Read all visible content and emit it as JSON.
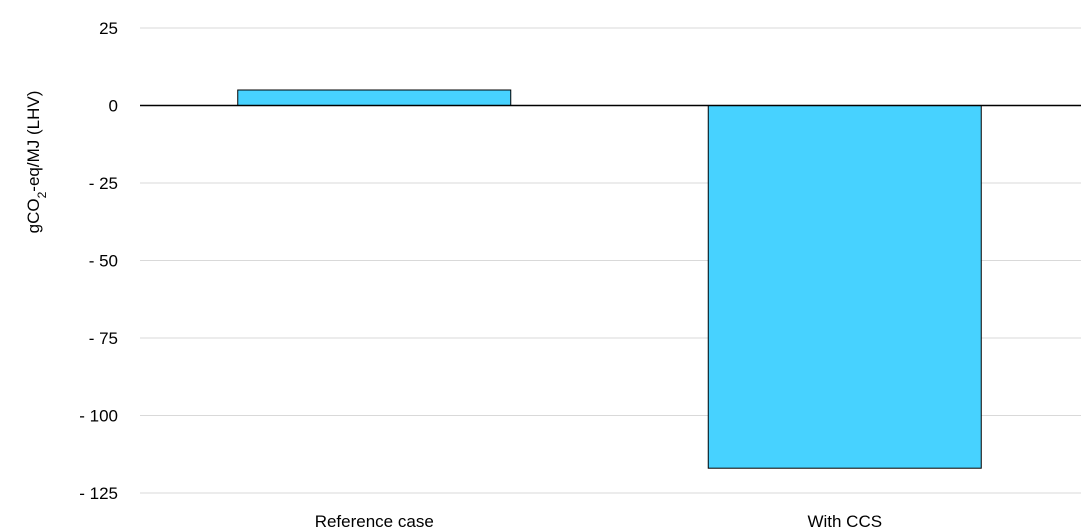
{
  "chart_data": {
    "type": "bar",
    "categories": [
      "Reference case",
      "With CCS"
    ],
    "values": [
      5,
      -117
    ],
    "ylabel_parts": [
      "gCO",
      "2",
      "-eq/MJ (LHV)"
    ],
    "ylim": [
      -125,
      25
    ],
    "yticks": [
      25,
      0,
      -25,
      -50,
      -75,
      -100,
      -125
    ],
    "ytick_labels": [
      "25",
      "0",
      "- 25",
      "- 50",
      "- 75",
      "- 100",
      "- 125"
    ],
    "grid": true,
    "bar_color": "#47d2ff",
    "legend": "none"
  }
}
